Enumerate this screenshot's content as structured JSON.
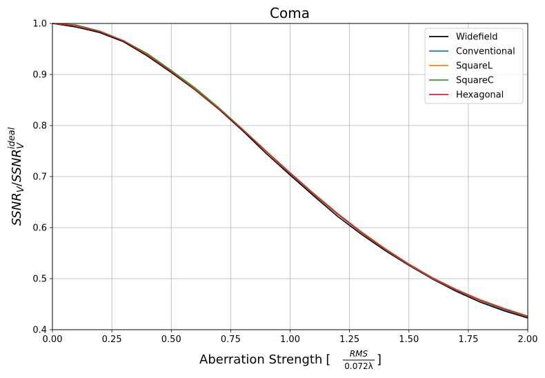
{
  "chart_data": {
    "type": "line",
    "title": "Coma",
    "xlabel": "Aberration Strength",
    "xlabel_fraction": {
      "numerator": "RMS",
      "denominator": "0.072λ"
    },
    "ylabel": "SSNR_V/SSNR_V^ideal",
    "ylabel_parts": {
      "base1": "SSNR",
      "sub1": "V",
      "sep": "/",
      "base2": "SSNR",
      "sub2": "V",
      "sup2": "ideal"
    },
    "xlim": [
      0,
      2
    ],
    "ylim": [
      0.4,
      1.0
    ],
    "x_ticks": [
      0,
      0.25,
      0.5,
      0.75,
      1.0,
      1.25,
      1.5,
      1.75,
      2.0
    ],
    "x_tick_labels": [
      "0.00",
      "0.25",
      "0.50",
      "0.75",
      "1.00",
      "1.25",
      "1.50",
      "1.75",
      "2.00"
    ],
    "y_ticks": [
      0.4,
      0.5,
      0.6,
      0.7,
      0.8,
      0.9,
      1.0
    ],
    "y_tick_labels": [
      "0.4",
      "0.5",
      "0.6",
      "0.7",
      "0.8",
      "0.9",
      "1.0"
    ],
    "grid": true,
    "legend_position": "top-right",
    "x": [
      0,
      0.1,
      0.2,
      0.3,
      0.4,
      0.5,
      0.6,
      0.7,
      0.8,
      0.9,
      1.0,
      1.1,
      1.2,
      1.3,
      1.4,
      1.5,
      1.6,
      1.7,
      1.8,
      1.9,
      2.0
    ],
    "series": [
      {
        "name": "Widefield",
        "color": "#000000",
        "values": [
          1.0,
          0.993,
          0.982,
          0.964,
          0.936,
          0.904,
          0.87,
          0.832,
          0.79,
          0.745,
          0.703,
          0.662,
          0.622,
          0.587,
          0.555,
          0.526,
          0.499,
          0.475,
          0.454,
          0.437,
          0.423
        ]
      },
      {
        "name": "Conventional",
        "color": "#1f77b4",
        "values": [
          1.0,
          0.996,
          0.984,
          0.966,
          0.939,
          0.907,
          0.872,
          0.834,
          0.792,
          0.749,
          0.706,
          0.665,
          0.626,
          0.59,
          0.557,
          0.527,
          0.5,
          0.477,
          0.457,
          0.439,
          0.425
        ]
      },
      {
        "name": "SquareL",
        "color": "#ff7f0e",
        "values": [
          1.0,
          0.996,
          0.984,
          0.966,
          0.939,
          0.907,
          0.872,
          0.834,
          0.793,
          0.75,
          0.708,
          0.667,
          0.628,
          0.592,
          0.559,
          0.529,
          0.502,
          0.479,
          0.459,
          0.442,
          0.427
        ]
      },
      {
        "name": "SquareC",
        "color": "#2ca02c",
        "values": [
          1.0,
          0.997,
          0.985,
          0.966,
          0.941,
          0.908,
          0.874,
          0.835,
          0.793,
          0.749,
          0.707,
          0.666,
          0.627,
          0.591,
          0.558,
          0.528,
          0.501,
          0.478,
          0.458,
          0.441,
          0.426
        ]
      },
      {
        "name": "Hexagonal",
        "color": "#d62728",
        "values": [
          1.0,
          0.996,
          0.984,
          0.966,
          0.938,
          0.906,
          0.871,
          0.833,
          0.792,
          0.749,
          0.707,
          0.666,
          0.627,
          0.591,
          0.558,
          0.528,
          0.501,
          0.478,
          0.458,
          0.441,
          0.426
        ]
      }
    ]
  }
}
